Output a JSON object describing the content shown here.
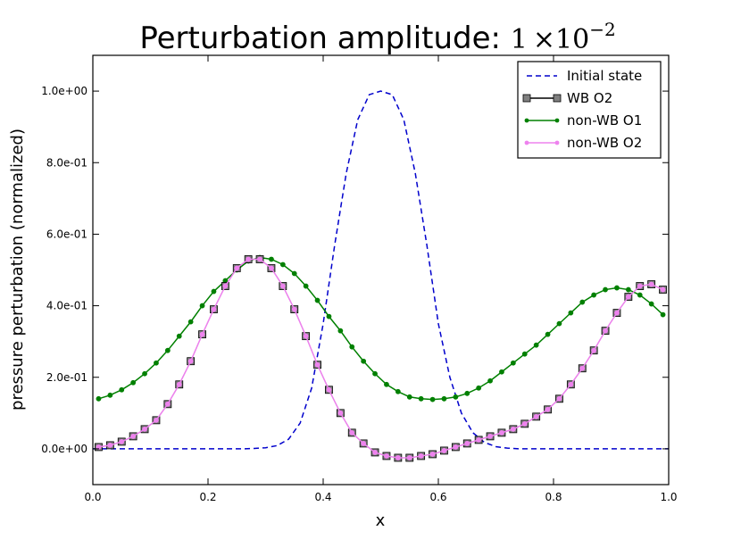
{
  "chart_data": {
    "type": "line",
    "title": "Perturbation amplitude: ",
    "title_math": {
      "mantissa": "1",
      "times": "×10",
      "exponent": "−2"
    },
    "xlabel": "x",
    "ylabel": "pressure perturbation (normalized)",
    "xlim": [
      0.0,
      1.0
    ],
    "ylim": [
      -0.1,
      1.1
    ],
    "x_ticks": [
      0.0,
      0.2,
      0.4,
      0.6,
      0.8,
      1.0
    ],
    "x_tick_labels": [
      "0.0",
      "0.2",
      "0.4",
      "0.6",
      "0.8",
      "1.0"
    ],
    "y_ticks": [
      0.0,
      0.2,
      0.4,
      0.6,
      0.8,
      1.0
    ],
    "y_tick_labels": [
      "0.0e+00",
      "2.0e-01",
      "4.0e-01",
      "6.0e-01",
      "8.0e-01",
      "1.0e+00"
    ],
    "grid": false,
    "legend_position": "top-right",
    "series": [
      {
        "name": "Initial state",
        "color": "#0000cc",
        "style": "dashed",
        "marker": "none",
        "x": [
          0.0,
          0.02,
          0.04,
          0.06,
          0.08,
          0.1,
          0.12,
          0.14,
          0.16,
          0.18,
          0.2,
          0.22,
          0.24,
          0.26,
          0.28,
          0.3,
          0.32,
          0.34,
          0.36,
          0.38,
          0.4,
          0.42,
          0.44,
          0.46,
          0.48,
          0.5,
          0.52,
          0.54,
          0.56,
          0.58,
          0.6,
          0.62,
          0.64,
          0.66,
          0.68,
          0.7,
          0.72,
          0.74,
          0.76,
          0.78,
          0.8,
          0.82,
          0.84,
          0.86,
          0.88,
          0.9,
          0.92,
          0.94,
          0.96,
          0.98,
          1.0
        ],
        "y": [
          0.0,
          0.0,
          0.0,
          0.0,
          0.0,
          0.0,
          0.0,
          0.0,
          0.0,
          0.0,
          0.0,
          0.0,
          0.0,
          0.0,
          0.001,
          0.003,
          0.009,
          0.027,
          0.072,
          0.17,
          0.35,
          0.57,
          0.77,
          0.92,
          0.99,
          1.0,
          0.99,
          0.92,
          0.77,
          0.57,
          0.35,
          0.2,
          0.1,
          0.045,
          0.018,
          0.006,
          0.002,
          0.0,
          0.0,
          0.0,
          0.0,
          0.0,
          0.0,
          0.0,
          0.0,
          0.0,
          0.0,
          0.0,
          0.0,
          0.0,
          0.0
        ]
      },
      {
        "name": "WB O2",
        "color": "#555555",
        "line_color": "#000000",
        "marker_fill": "#808080",
        "style": "solid",
        "marker": "square",
        "x": [
          0.01,
          0.03,
          0.05,
          0.07,
          0.09,
          0.11,
          0.13,
          0.15,
          0.17,
          0.19,
          0.21,
          0.23,
          0.25,
          0.27,
          0.29,
          0.31,
          0.33,
          0.35,
          0.37,
          0.39,
          0.41,
          0.43,
          0.45,
          0.47,
          0.49,
          0.51,
          0.53,
          0.55,
          0.57,
          0.59,
          0.61,
          0.63,
          0.65,
          0.67,
          0.69,
          0.71,
          0.73,
          0.75,
          0.77,
          0.79,
          0.81,
          0.83,
          0.85,
          0.87,
          0.89,
          0.91,
          0.93,
          0.95,
          0.97,
          0.99
        ],
        "y": [
          0.005,
          0.01,
          0.02,
          0.035,
          0.055,
          0.08,
          0.125,
          0.18,
          0.245,
          0.32,
          0.39,
          0.455,
          0.505,
          0.53,
          0.53,
          0.505,
          0.455,
          0.39,
          0.315,
          0.235,
          0.165,
          0.1,
          0.045,
          0.015,
          -0.01,
          -0.02,
          -0.025,
          -0.025,
          -0.02,
          -0.015,
          -0.005,
          0.005,
          0.015,
          0.025,
          0.035,
          0.045,
          0.055,
          0.07,
          0.09,
          0.11,
          0.14,
          0.18,
          0.225,
          0.275,
          0.33,
          0.38,
          0.425,
          0.455,
          0.46,
          0.445
        ]
      },
      {
        "name": "non-WB O1",
        "color": "#008000",
        "style": "solid",
        "marker": "circle",
        "x": [
          0.01,
          0.03,
          0.05,
          0.07,
          0.09,
          0.11,
          0.13,
          0.15,
          0.17,
          0.19,
          0.21,
          0.23,
          0.25,
          0.27,
          0.29,
          0.31,
          0.33,
          0.35,
          0.37,
          0.39,
          0.41,
          0.43,
          0.45,
          0.47,
          0.49,
          0.51,
          0.53,
          0.55,
          0.57,
          0.59,
          0.61,
          0.63,
          0.65,
          0.67,
          0.69,
          0.71,
          0.73,
          0.75,
          0.77,
          0.79,
          0.81,
          0.83,
          0.85,
          0.87,
          0.89,
          0.91,
          0.93,
          0.95,
          0.97,
          0.99
        ],
        "y": [
          0.14,
          0.15,
          0.165,
          0.185,
          0.21,
          0.24,
          0.275,
          0.315,
          0.355,
          0.4,
          0.44,
          0.47,
          0.5,
          0.525,
          0.535,
          0.53,
          0.515,
          0.49,
          0.455,
          0.415,
          0.37,
          0.33,
          0.285,
          0.245,
          0.21,
          0.18,
          0.16,
          0.145,
          0.14,
          0.138,
          0.14,
          0.145,
          0.155,
          0.17,
          0.19,
          0.215,
          0.24,
          0.265,
          0.29,
          0.32,
          0.35,
          0.38,
          0.41,
          0.43,
          0.445,
          0.45,
          0.445,
          0.43,
          0.405,
          0.375
        ]
      },
      {
        "name": "non-WB O2",
        "color": "#ee82ee",
        "style": "solid",
        "marker": "circle",
        "x": [
          0.01,
          0.03,
          0.05,
          0.07,
          0.09,
          0.11,
          0.13,
          0.15,
          0.17,
          0.19,
          0.21,
          0.23,
          0.25,
          0.27,
          0.29,
          0.31,
          0.33,
          0.35,
          0.37,
          0.39,
          0.41,
          0.43,
          0.45,
          0.47,
          0.49,
          0.51,
          0.53,
          0.55,
          0.57,
          0.59,
          0.61,
          0.63,
          0.65,
          0.67,
          0.69,
          0.71,
          0.73,
          0.75,
          0.77,
          0.79,
          0.81,
          0.83,
          0.85,
          0.87,
          0.89,
          0.91,
          0.93,
          0.95,
          0.97,
          0.99
        ],
        "y": [
          0.005,
          0.01,
          0.02,
          0.035,
          0.055,
          0.08,
          0.125,
          0.18,
          0.245,
          0.32,
          0.39,
          0.455,
          0.505,
          0.53,
          0.53,
          0.505,
          0.455,
          0.39,
          0.315,
          0.235,
          0.165,
          0.1,
          0.045,
          0.015,
          -0.01,
          -0.02,
          -0.025,
          -0.025,
          -0.02,
          -0.015,
          -0.005,
          0.005,
          0.015,
          0.025,
          0.035,
          0.045,
          0.055,
          0.07,
          0.09,
          0.11,
          0.14,
          0.18,
          0.225,
          0.275,
          0.33,
          0.38,
          0.425,
          0.455,
          0.46,
          0.445
        ]
      }
    ]
  }
}
